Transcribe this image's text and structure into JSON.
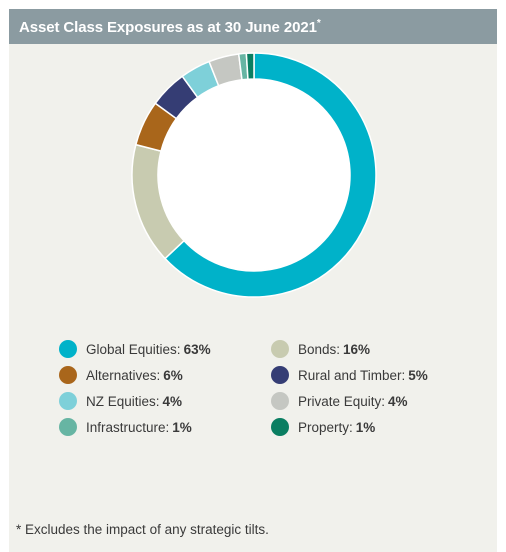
{
  "header": {
    "title": "Asset Class Exposures as at 30 June 2021",
    "title_marker": "*"
  },
  "footnote": "* Excludes the impact of any strategic tilts.",
  "chart_data": {
    "type": "pie",
    "variant": "donut",
    "legend_position": "bottom",
    "series": [
      {
        "name": "Global Equities",
        "value": 63,
        "label": "63%",
        "color": "#00b2c9"
      },
      {
        "name": "Bonds",
        "value": 16,
        "label": "16%",
        "color": "#c8cbb0"
      },
      {
        "name": "Alternatives",
        "value": 6,
        "label": "6%",
        "color": "#a9661b"
      },
      {
        "name": "Rural and Timber",
        "value": 5,
        "label": "5%",
        "color": "#353d74"
      },
      {
        "name": "NZ Equities",
        "value": 4,
        "label": "4%",
        "color": "#7ed0d9"
      },
      {
        "name": "Private Equity",
        "value": 4,
        "label": "4%",
        "color": "#c5c7c2"
      },
      {
        "name": "Infrastructure",
        "value": 1,
        "label": "1%",
        "color": "#67b5a3"
      },
      {
        "name": "Property",
        "value": 1,
        "label": "1%",
        "color": "#0a7e61"
      }
    ],
    "legend_order": [
      "Global Equities",
      "Bonds",
      "Alternatives",
      "Rural and Timber",
      "NZ Equities",
      "Private Equity",
      "Infrastructure",
      "Property"
    ],
    "slice_order_clockwise_from_top": [
      "Global Equities",
      "Bonds",
      "Alternatives",
      "Rural and Timber",
      "NZ Equities",
      "Private Equity",
      "Infrastructure",
      "Property"
    ]
  }
}
